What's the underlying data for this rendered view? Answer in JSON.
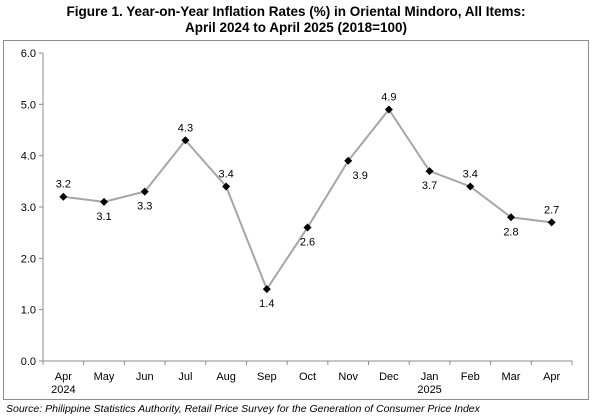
{
  "chart_data": {
    "type": "line",
    "title_line1": "Figure 1. Year-on-Year Inflation Rates (%) in Oriental Mindoro, All Items:",
    "title_line2": "April 2024 to April 2025 (2018=100)",
    "categories": [
      "Apr",
      "May",
      "Jun",
      "Jul",
      "Aug",
      "Sep",
      "Oct",
      "Nov",
      "Dec",
      "Jan",
      "Feb",
      "Mar",
      "Apr"
    ],
    "category_years": [
      "2024",
      "",
      "",
      "",
      "",
      "",
      "",
      "",
      "",
      "2025",
      "",
      "",
      ""
    ],
    "values": [
      3.2,
      3.1,
      3.3,
      4.3,
      3.4,
      1.4,
      2.6,
      3.9,
      4.9,
      3.7,
      3.4,
      2.8,
      2.7
    ],
    "data_labels": [
      "3.2",
      "3.1",
      "3.3",
      "4.3",
      "3.4",
      "1.4",
      "2.6",
      "3.9",
      "4.9",
      "3.7",
      "3.4",
      "2.8",
      "2.7"
    ],
    "y_ticks": [
      "0.0",
      "1.0",
      "2.0",
      "3.0",
      "4.0",
      "5.0",
      "6.0"
    ],
    "ylim": [
      0,
      6
    ],
    "grid": false,
    "line_color": "#a6a6a6",
    "marker_color": "#000000",
    "source": "Source: Philippine Statistics Authority, Retail Price Survey for the Generation of Consumer Price Index"
  }
}
